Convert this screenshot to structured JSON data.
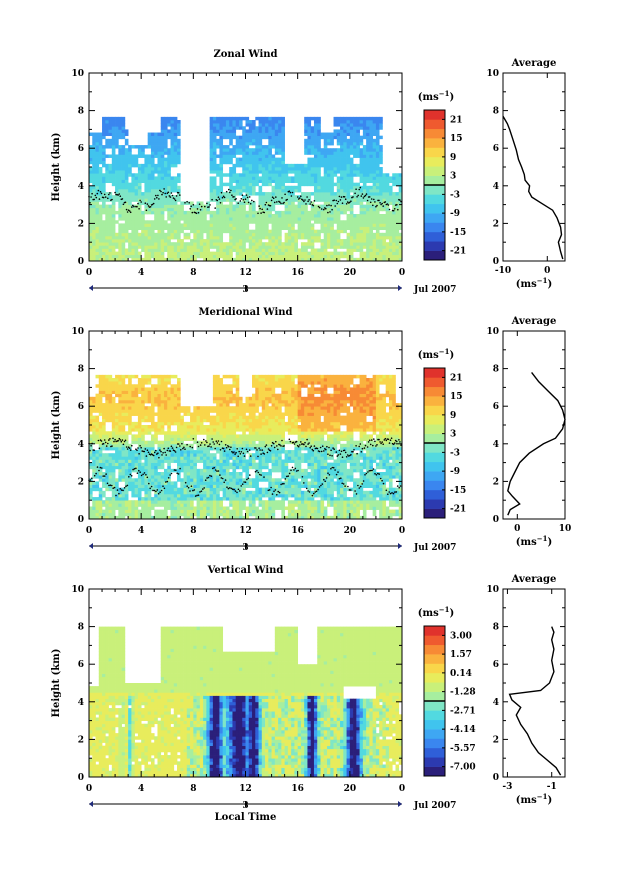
{
  "chart_data": [
    {
      "type": "heatmap",
      "title": "Zonal Wind",
      "ylabel": "Height (km)",
      "ylim": [
        0,
        10
      ],
      "yticks": [
        "0",
        "2",
        "4",
        "6",
        "8",
        "10"
      ],
      "xlim": [
        0,
        24
      ],
      "xticks": [
        "0",
        "4",
        "8",
        "12",
        "16",
        "20",
        "0"
      ],
      "date_day": "3",
      "date_month": "Jul 2007",
      "colorbar": {
        "unit": "(ms",
        "unit_sup": "−1",
        "unit_close": ")",
        "ticks": [
          "21",
          "15",
          "9",
          "3",
          "-3",
          "-9",
          "-15",
          "-21"
        ],
        "range": [
          -24,
          24
        ]
      },
      "profile": {
        "title": "Average",
        "xlabel": "(ms",
        "xlabel_sup": "−1",
        "xlabel_close": ")",
        "xticks": [
          "-10",
          "0"
        ],
        "xtick_values": [
          -10,
          0
        ],
        "xlim": [
          -10,
          4
        ],
        "yticks": [
          "0",
          "2",
          "4",
          "6",
          "8",
          "10"
        ],
        "points": [
          [
            3.5,
            0.1
          ],
          [
            3.0,
            0.5
          ],
          [
            2.5,
            1.0
          ],
          [
            3.2,
            1.4
          ],
          [
            3.0,
            1.8
          ],
          [
            2.2,
            2.3
          ],
          [
            1.2,
            2.7
          ],
          [
            -1.5,
            3.1
          ],
          [
            -3.5,
            3.4
          ],
          [
            -4.2,
            3.7
          ],
          [
            -4.0,
            4.0
          ],
          [
            -5.0,
            4.3
          ],
          [
            -5.2,
            4.6
          ],
          [
            -5.8,
            5.0
          ],
          [
            -6.5,
            5.4
          ],
          [
            -7.0,
            5.9
          ],
          [
            -7.8,
            6.5
          ],
          [
            -8.5,
            7.0
          ],
          [
            -9.0,
            7.3
          ],
          [
            -9.5,
            7.5
          ],
          [
            -10.0,
            7.7
          ]
        ]
      },
      "field": "zonal"
    },
    {
      "type": "heatmap",
      "title": "Meridional Wind",
      "ylabel": "Height (km)",
      "ylim": [
        0,
        10
      ],
      "yticks": [
        "0",
        "2",
        "4",
        "6",
        "8",
        "10"
      ],
      "xlim": [
        0,
        24
      ],
      "xticks": [
        "0",
        "4",
        "8",
        "12",
        "16",
        "20",
        "0"
      ],
      "date_day": "3",
      "date_month": "Jul 2007",
      "colorbar": {
        "unit": "(ms",
        "unit_sup": "−1",
        "unit_close": ")",
        "ticks": [
          "21",
          "15",
          "9",
          "3",
          "-3",
          "-9",
          "-15",
          "-21"
        ],
        "range": [
          -24,
          24
        ]
      },
      "profile": {
        "title": "Average",
        "xlabel": "(ms",
        "xlabel_sup": "−1",
        "xlabel_close": ")",
        "xticks": [
          "0",
          "10"
        ],
        "xtick_values": [
          0,
          10
        ],
        "xlim": [
          -3,
          10
        ],
        "yticks": [
          "0",
          "2",
          "4",
          "6",
          "8",
          "10"
        ],
        "points": [
          [
            -2.0,
            0.2
          ],
          [
            -1.5,
            0.5
          ],
          [
            0.5,
            0.8
          ],
          [
            -1.0,
            1.2
          ],
          [
            -2.0,
            1.5
          ],
          [
            -1.5,
            2.0
          ],
          [
            -0.5,
            2.5
          ],
          [
            0.5,
            3.0
          ],
          [
            2.5,
            3.5
          ],
          [
            5.5,
            4.0
          ],
          [
            8.0,
            4.3
          ],
          [
            9.5,
            4.8
          ],
          [
            10.0,
            5.3
          ],
          [
            9.5,
            5.8
          ],
          [
            8.5,
            6.3
          ],
          [
            6.5,
            6.8
          ],
          [
            4.5,
            7.3
          ],
          [
            3.0,
            7.8
          ]
        ]
      },
      "field": "meridional"
    },
    {
      "type": "heatmap",
      "title": "Vertical Wind",
      "ylabel": "Height (km)",
      "xlabel": "Local Time",
      "ylim": [
        0,
        10
      ],
      "yticks": [
        "0",
        "2",
        "4",
        "6",
        "8",
        "10"
      ],
      "xlim": [
        0,
        24
      ],
      "xticks": [
        "0",
        "4",
        "8",
        "12",
        "16",
        "20",
        "0"
      ],
      "date_day": "3",
      "date_month": "Jul 2007",
      "colorbar": {
        "unit": "(ms",
        "unit_sup": "−1",
        "unit_close": ")",
        "ticks": [
          "3.00",
          "1.57",
          "0.14",
          "-1.28",
          "-2.71",
          "-4.14",
          "-5.57",
          "-7.00"
        ],
        "range": [
          -7.7,
          3.7
        ]
      },
      "profile": {
        "title": "Average",
        "xlabel": "(ms",
        "xlabel_sup": "−1",
        "xlabel_close": ")",
        "xticks": [
          "-3",
          "-1"
        ],
        "xtick_values": [
          -3,
          -1
        ],
        "xlim": [
          -3.2,
          -0.4
        ],
        "yticks": [
          "0",
          "2",
          "4",
          "6",
          "8",
          "10"
        ],
        "points": [
          [
            -0.6,
            0.1
          ],
          [
            -0.8,
            0.5
          ],
          [
            -1.2,
            0.9
          ],
          [
            -1.6,
            1.3
          ],
          [
            -1.9,
            1.8
          ],
          [
            -2.1,
            2.3
          ],
          [
            -2.4,
            2.8
          ],
          [
            -2.6,
            3.3
          ],
          [
            -2.4,
            3.7
          ],
          [
            -2.8,
            4.1
          ],
          [
            -2.9,
            4.4
          ],
          [
            -1.5,
            4.6
          ],
          [
            -1.1,
            5.0
          ],
          [
            -0.9,
            5.6
          ],
          [
            -1.0,
            6.2
          ],
          [
            -0.9,
            6.8
          ],
          [
            -1.0,
            7.3
          ],
          [
            -0.9,
            7.7
          ],
          [
            -1.0,
            8.0
          ]
        ]
      },
      "field": "vertical"
    }
  ]
}
